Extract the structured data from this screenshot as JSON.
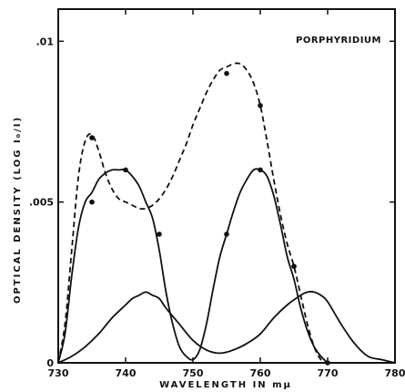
{
  "chart_data": {
    "type": "line",
    "title": "PORPHYRIDIUM",
    "xlabel": "WAVELENGTH  IN   mμ",
    "ylabel": "OPTICAL DENSITY (LOG I₀/I)",
    "xlim": [
      730,
      780
    ],
    "ylim": [
      0,
      0.011
    ],
    "x_ticks": [
      "730",
      "740",
      "750",
      "760",
      "770",
      "780"
    ],
    "y_ticks": [
      {
        "value": 0,
        "label": "0"
      },
      {
        "value": 0.005,
        "label": ".005"
      },
      {
        "value": 0.01,
        "label": ".01"
      }
    ],
    "grid": false,
    "series": [
      {
        "style": "dashed",
        "markers": [
          [
            735,
            0.007
          ],
          [
            755,
            0.009
          ],
          [
            760,
            0.008
          ],
          [
            765,
            0.003
          ],
          [
            770,
            0.0
          ]
        ],
        "x": [
          730,
          731,
          732,
          733,
          734,
          735,
          736,
          737,
          738,
          739,
          740,
          741,
          742,
          743,
          744,
          745,
          746,
          747,
          748,
          749,
          750,
          751,
          752,
          753,
          754,
          755,
          756,
          757,
          758,
          759,
          760,
          761,
          762,
          763,
          764,
          765,
          766,
          767,
          768,
          769,
          770
        ],
        "values": [
          0.0,
          0.0012,
          0.0035,
          0.0058,
          0.0069,
          0.0071,
          0.0066,
          0.0059,
          0.0054,
          0.0051,
          0.005,
          0.0049,
          0.0048,
          0.0048,
          0.0049,
          0.0051,
          0.0054,
          0.0058,
          0.0063,
          0.0068,
          0.0074,
          0.0079,
          0.0084,
          0.0088,
          0.0091,
          0.0092,
          0.0093,
          0.0093,
          0.0091,
          0.0087,
          0.008,
          0.0069,
          0.0057,
          0.0046,
          0.0037,
          0.003,
          0.0021,
          0.0012,
          0.0005,
          0.0001,
          0.0
        ]
      },
      {
        "style": "solid",
        "markers": [
          [
            735,
            0.005
          ],
          [
            740,
            0.006
          ],
          [
            745,
            0.004
          ],
          [
            755,
            0.004
          ],
          [
            760,
            0.006
          ],
          [
            765,
            0.003
          ]
        ],
        "x": [
          730,
          731,
          732,
          733,
          734,
          735,
          736,
          737,
          738,
          739,
          740,
          741,
          742,
          743,
          744,
          745,
          746,
          747,
          748,
          749,
          750,
          751,
          752,
          753,
          754,
          755,
          756,
          757,
          758,
          759,
          760,
          761,
          762,
          763,
          764,
          765,
          766,
          767,
          768,
          769,
          770
        ],
        "values": [
          0.0,
          0.0009,
          0.0027,
          0.0042,
          0.005,
          0.0053,
          0.0057,
          0.0059,
          0.006,
          0.006,
          0.006,
          0.0058,
          0.0055,
          0.005,
          0.0045,
          0.0035,
          0.0022,
          0.0012,
          0.0005,
          0.0002,
          0.0001,
          0.0004,
          0.0012,
          0.0023,
          0.0033,
          0.004,
          0.0047,
          0.0053,
          0.0057,
          0.006,
          0.006,
          0.0058,
          0.0052,
          0.0043,
          0.0033,
          0.0026,
          0.0017,
          0.001,
          0.0005,
          0.0002,
          0.0
        ]
      },
      {
        "style": "solid",
        "x": [
          730,
          732,
          734,
          736,
          738,
          740,
          741,
          742,
          743,
          744,
          745,
          746,
          748,
          750,
          752,
          754,
          756,
          758,
          760,
          762,
          764,
          766,
          767,
          768,
          769,
          770,
          772,
          774,
          776,
          778,
          780
        ],
        "values": [
          0.0,
          0.0002,
          0.0005,
          0.0009,
          0.0014,
          0.0018,
          0.002,
          0.0021,
          0.0022,
          0.0021,
          0.002,
          0.0017,
          0.0012,
          0.0007,
          0.0004,
          0.0003,
          0.0004,
          0.0006,
          0.0009,
          0.0014,
          0.0018,
          0.0021,
          0.0022,
          0.0022,
          0.0021,
          0.0019,
          0.0012,
          0.0006,
          0.0002,
          0.0001,
          0.0
        ]
      }
    ]
  }
}
